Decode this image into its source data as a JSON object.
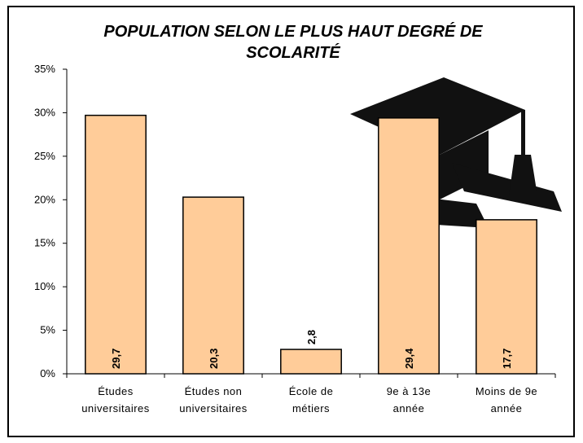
{
  "chart_data": {
    "type": "bar",
    "title": "POPULATION SELON LE PLUS HAUT DEGRÉ DE SCOLARITÉ",
    "categories": [
      "Études universitaires",
      "Études non universitaires",
      "École de métiers",
      "9e à 13e année",
      "Moins de 9e année"
    ],
    "values": [
      29.7,
      20.3,
      2.8,
      29.4,
      17.7
    ],
    "value_labels": [
      "29,7",
      "20,3",
      "2,8",
      "29,4",
      "17,7"
    ],
    "color": "#ffcc99",
    "ylim": [
      0,
      35
    ],
    "yticks": [
      {
        "value": 0,
        "label": "0%"
      },
      {
        "value": 5,
        "label": "5%"
      },
      {
        "value": 10,
        "label": "10%"
      },
      {
        "value": 15,
        "label": "15%"
      },
      {
        "value": 20,
        "label": "20%"
      },
      {
        "value": 25,
        "label": "25%"
      },
      {
        "value": 30,
        "label": "30%"
      },
      {
        "value": 35,
        "label": "35%"
      }
    ],
    "grid": false
  }
}
